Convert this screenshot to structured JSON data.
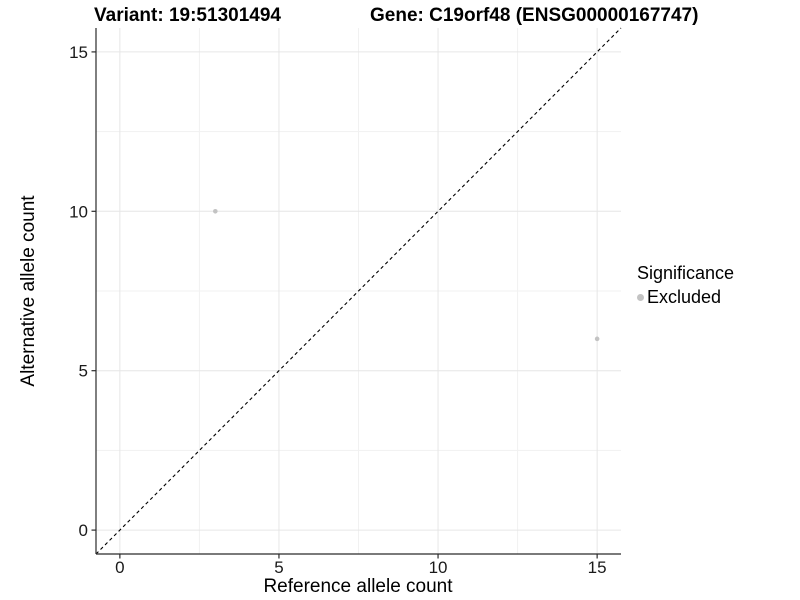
{
  "chart_data": {
    "type": "scatter",
    "title_left": "Variant: 19:51301494",
    "title_right": "Gene: C19orf48 (ENSG00000167747)",
    "xlabel": "Reference allele count",
    "ylabel": "Alternative allele count",
    "xlim": [
      -0.75,
      15.75
    ],
    "ylim": [
      -0.75,
      15.75
    ],
    "x_ticks": [
      0,
      5,
      10,
      15
    ],
    "y_ticks": [
      0,
      5,
      10,
      15
    ],
    "x_minor_ticks": [
      2.5,
      7.5,
      12.5
    ],
    "y_minor_ticks": [
      2.5,
      7.5,
      12.5
    ],
    "grid": true,
    "points": [
      {
        "x": 3,
        "y": 10,
        "significance": "Excluded"
      },
      {
        "x": 15,
        "y": 6,
        "significance": "Excluded"
      }
    ],
    "reference_line": {
      "style": "dashed",
      "equation": "y = x",
      "from": [
        -0.75,
        -0.75
      ],
      "to": [
        15.75,
        15.75
      ],
      "color": "#000000"
    },
    "legend": {
      "title": "Significance",
      "position": "right",
      "entries": [
        {
          "label": "Excluded",
          "color": "#c3c3c3",
          "marker": "circle"
        }
      ]
    },
    "colors": {
      "point": "#c3c3c3",
      "grid_major": "#e6e6e6",
      "grid_minor": "#f1f1f1",
      "axis_line": "#2b2b2b",
      "tick_text": "#1a1a1a"
    }
  }
}
